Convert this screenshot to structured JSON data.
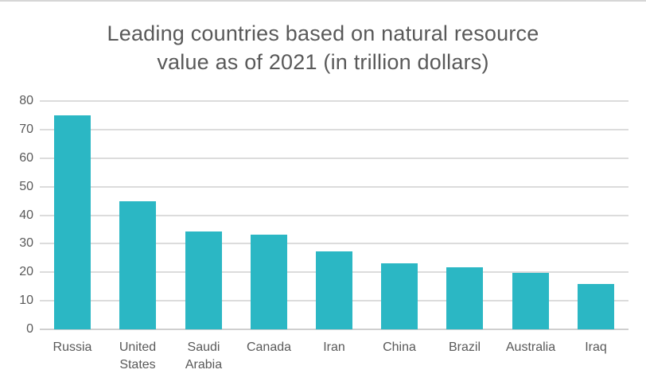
{
  "chart_data": {
    "type": "bar",
    "title": "Leading countries based on natural resource value as of 2021 (in trillion dollars)",
    "title_lines": [
      "Leading countries based on natural resource",
      "value as of 2021 (in trillion dollars)"
    ],
    "categories": [
      "Russia",
      "United States",
      "Saudi Arabia",
      "Canada",
      "Iran",
      "China",
      "Brazil",
      "Australia",
      "Iraq"
    ],
    "values": [
      75,
      45,
      34.4,
      33.2,
      27.3,
      23,
      21.8,
      19.9,
      15.9
    ],
    "xlabel": "",
    "ylabel": "",
    "ylim": [
      0,
      80
    ],
    "yticks": [
      0,
      10,
      20,
      30,
      40,
      50,
      60,
      70,
      80
    ],
    "grid": true,
    "legend": "none",
    "colors": {
      "bar": "#2BB7C4",
      "gridline": "#DCDCDC",
      "axis_baseline": "#CFCFCF",
      "text": "#595959"
    }
  }
}
